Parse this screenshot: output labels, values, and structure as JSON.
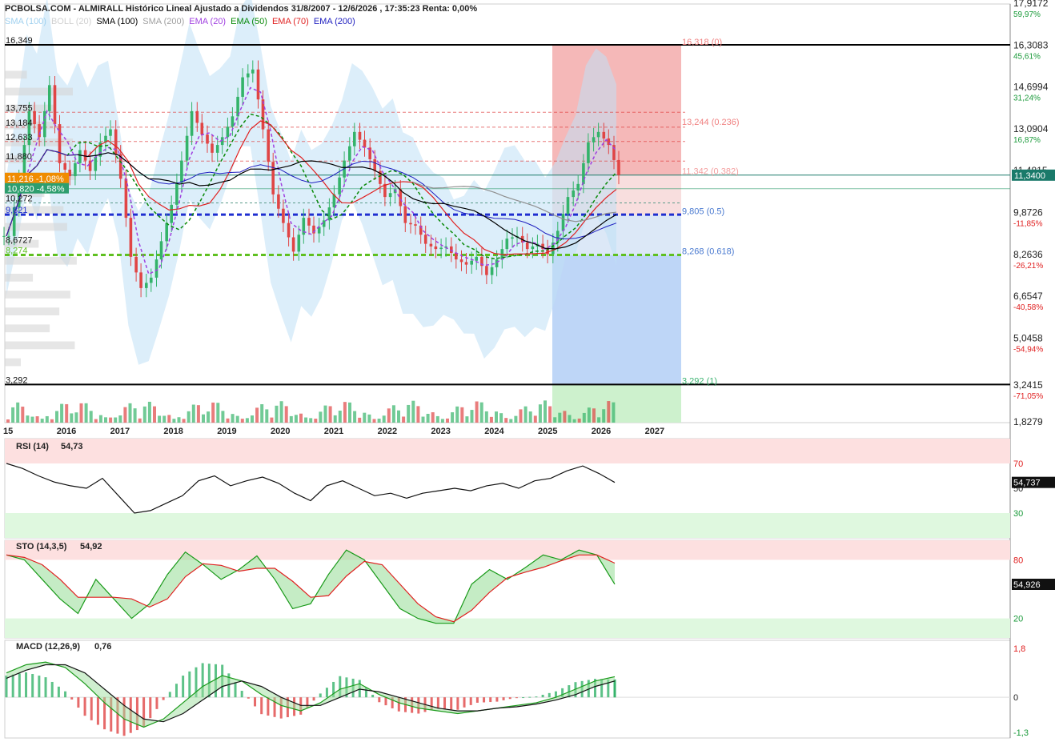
{
  "header": {
    "title": "PCBOLSA.COM - ALMIRALL Histórico Lineal Ajustado a Dividendos 31/8/2007 - 12/6/2026 , 17:35:23 Renta: 0,00%"
  },
  "indicators_legend": [
    {
      "label": "SMA (100)",
      "color": "#9fd0ef"
    },
    {
      "label": "BOLL (20)",
      "color": "#d0d0d0"
    },
    {
      "label": "SMA (100)",
      "color": "#000000"
    },
    {
      "label": "SMA (200)",
      "color": "#a0a0a0"
    },
    {
      "label": "EMA (20)",
      "color": "#a040e0"
    },
    {
      "label": "EMA (50)",
      "color": "#0a8a0a"
    },
    {
      "label": "EMA (70)",
      "color": "#e02020"
    },
    {
      "label": "EMA (200)",
      "color": "#2020c0"
    }
  ],
  "chart_data": [
    {
      "type": "line",
      "name": "price",
      "x_axis_labels": [
        "15",
        "2016",
        "2017",
        "2018",
        "2019",
        "2020",
        "2021",
        "2022",
        "2023",
        "2024",
        "2025",
        "2026",
        "2027"
      ],
      "right_axis_ticks": [
        {
          "value": "17,9172",
          "pct": "59,97%"
        },
        {
          "value": "16,3083",
          "pct": "45,61%"
        },
        {
          "value": "14,6994",
          "pct": "31,24%"
        },
        {
          "value": "13,0904",
          "pct": "16,87%"
        },
        {
          "value": "11,4815",
          "pct": ""
        },
        {
          "value": "9,8726",
          "pct": "-11,85%"
        },
        {
          "value": "8,2636",
          "pct": "-26,21%"
        },
        {
          "value": "6,6547",
          "pct": "-40,58%"
        },
        {
          "value": "5,0458",
          "pct": "-54,94%"
        },
        {
          "value": "3,2415",
          "pct": "-71,05%"
        },
        {
          "value": "1,8279",
          "pct": ""
        }
      ],
      "current_price_label": "11,3400",
      "left_levels": [
        "16,349",
        "13,755",
        "13,184",
        "12,633",
        "11,880",
        "10,272",
        "9,821",
        "8,6727",
        "8,274",
        "3,292"
      ],
      "badges": [
        {
          "text": "11,216  -1,08%",
          "color": "#f08c00"
        },
        {
          "text": "10,820  -4,58%",
          "color": "#2e9e6e"
        }
      ],
      "fibonacci": [
        {
          "text": "16,318 (0)",
          "color": "#f08080"
        },
        {
          "text": "13,244 (0.236)",
          "color": "#f08080"
        },
        {
          "text": "11,342 (0.382)",
          "color": "#f4a0a0"
        },
        {
          "text": "9,805 (0.5)",
          "color": "#4a7ad0"
        },
        {
          "text": "8,268 (0.618)",
          "color": "#4a7ad0"
        },
        {
          "text": "3,292 (1)",
          "color": "#3cb371"
        }
      ],
      "close_series": [
        9.0,
        11.2,
        13.8,
        12.8,
        14.8,
        11.8,
        11.3,
        12.3,
        11.5,
        12.6,
        13.1,
        11.2,
        8.2,
        7.0,
        7.4,
        8.8,
        10.2,
        11.9,
        13.8,
        12.9,
        12.2,
        12.8,
        13.6,
        15.1,
        15.4,
        13.1,
        10.6,
        9.5,
        8.4,
        9.7,
        9.1,
        9.6,
        10.6,
        11.9,
        13.0,
        12.4,
        11.5,
        10.5,
        10.8,
        9.5,
        9.4,
        8.7,
        8.5,
        8.6,
        8.1,
        7.9,
        8.2,
        7.5,
        8.1,
        8.9,
        9.0,
        8.5,
        8.7,
        8.3,
        9.2,
        10.5,
        11.0,
        12.6,
        13.0,
        12.5,
        11.34
      ]
    },
    {
      "type": "line",
      "name": "RSI (14)",
      "label": "RSI (14)",
      "value_label": "54,73",
      "last_badge": "54,737",
      "y_ticks": [
        "70",
        "50",
        "30"
      ],
      "values": [
        70,
        66,
        60,
        55,
        52,
        50,
        58,
        44,
        30,
        32,
        38,
        44,
        56,
        60,
        52,
        56,
        59,
        54,
        46,
        40,
        52,
        56,
        50,
        44,
        46,
        42,
        46,
        48,
        50,
        48,
        52,
        54,
        50,
        56,
        58,
        64,
        68,
        62,
        54.73
      ]
    },
    {
      "type": "line",
      "name": "STO (14,3,5)",
      "label": "STO (14,3,5)",
      "value_label": "54,92",
      "last_badge": "54,926",
      "y_ticks": [
        "80",
        "20"
      ],
      "values": [
        85,
        80,
        60,
        40,
        25,
        60,
        40,
        20,
        35,
        65,
        88,
        75,
        60,
        70,
        84,
        60,
        30,
        35,
        65,
        90,
        80,
        55,
        30,
        20,
        15,
        15,
        55,
        70,
        60,
        72,
        85,
        80,
        90,
        85,
        54.92
      ]
    },
    {
      "type": "bar",
      "name": "MACD (12,26,9)",
      "label": "MACD (12,26,9)",
      "value_label": "0,76",
      "y_ticks": [
        "1,8",
        "0",
        "-1,3"
      ],
      "macd": [
        0.9,
        1.2,
        1.3,
        1.1,
        0.5,
        -0.2,
        -0.8,
        -1.1,
        -0.8,
        -0.2,
        0.4,
        0.8,
        0.6,
        0.1,
        -0.3,
        -0.5,
        -0.2,
        0.3,
        0.5,
        0.1,
        -0.2,
        -0.4,
        -0.5,
        -0.6,
        -0.5,
        -0.4,
        -0.3,
        -0.2,
        0.0,
        0.3,
        0.6,
        0.76
      ],
      "signal": [
        0.7,
        1.0,
        1.2,
        1.2,
        0.9,
        0.3,
        -0.3,
        -0.8,
        -0.9,
        -0.6,
        -0.1,
        0.4,
        0.6,
        0.4,
        0.0,
        -0.3,
        -0.3,
        0.0,
        0.3,
        0.2,
        0.0,
        -0.2,
        -0.4,
        -0.5,
        -0.5,
        -0.4,
        -0.35,
        -0.25,
        -0.1,
        0.1,
        0.4,
        0.6
      ]
    }
  ]
}
